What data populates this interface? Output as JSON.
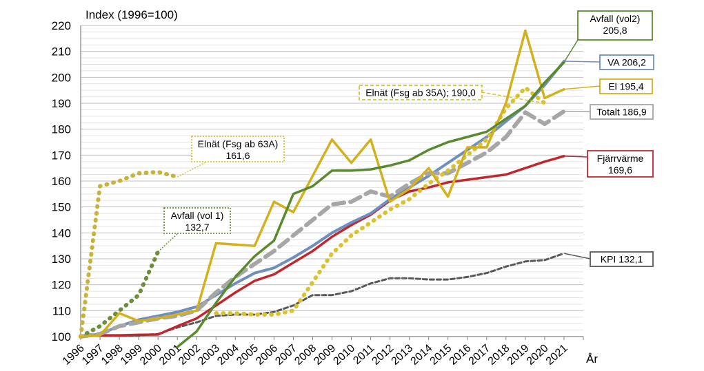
{
  "chart_data": {
    "type": "line",
    "title": "Index (1996=100)",
    "xlabel": "År",
    "ylabel": "",
    "ylim": [
      100,
      220
    ],
    "grid": true,
    "x": [
      "1996",
      "1997",
      "1998",
      "1999",
      "2000",
      "2001",
      "2002",
      "2003",
      "2004",
      "2005",
      "2006",
      "2007",
      "2008",
      "2009",
      "2010",
      "2011",
      "2012",
      "2013",
      "2014",
      "2015",
      "2016",
      "2017",
      "2018",
      "2019",
      "2020",
      "2021"
    ],
    "yticks": [
      "100",
      "110",
      "120",
      "130",
      "140",
      "150",
      "160",
      "170",
      "180",
      "190",
      "200",
      "210",
      "220"
    ],
    "series": [
      {
        "key": "kpi",
        "color": "#595959",
        "dash": "6,4",
        "width": 3,
        "x": [
          1996,
          1997,
          1998,
          1999,
          2000,
          2001,
          2002,
          2003,
          2004,
          2005,
          2006,
          2007,
          2008,
          2009,
          2010,
          2011,
          2012,
          2013,
          2014,
          2015,
          2016,
          2017,
          2018,
          2019,
          2020,
          2021
        ],
        "values": [
          100,
          100.5,
          100.3,
          100.5,
          101,
          103.5,
          105.5,
          108,
          108.5,
          108.5,
          109.5,
          112,
          116,
          116,
          117.5,
          120.5,
          122.5,
          122.5,
          122,
          122,
          123,
          124.5,
          127,
          129,
          129.5,
          132.1
        ]
      },
      {
        "key": "fjarr",
        "color": "#c0272d",
        "dash": "",
        "width": 3.5,
        "x": [
          1996,
          1997,
          1998,
          1999,
          2000,
          2001,
          2002,
          2003,
          2004,
          2005,
          2006,
          2007,
          2008,
          2009,
          2010,
          2011,
          2012,
          2013,
          2014,
          2015,
          2016,
          2017,
          2018,
          2019,
          2020,
          2021
        ],
        "values": [
          100,
          100.5,
          100.5,
          100.7,
          100.8,
          104,
          107,
          112,
          117,
          121.5,
          124,
          128.5,
          133,
          138.5,
          143,
          147,
          152.5,
          156,
          157.5,
          159.5,
          160.5,
          161.5,
          162.5,
          165,
          167.5,
          169.6
        ]
      },
      {
        "key": "va",
        "color": "#6e8fbd",
        "dash": "",
        "width": 4,
        "x": [
          1996,
          1997,
          1998,
          1999,
          2000,
          2001,
          2002,
          2003,
          2004,
          2005,
          2006,
          2007,
          2008,
          2009,
          2010,
          2011,
          2012,
          2013,
          2014,
          2015,
          2016,
          2017,
          2018,
          2019,
          2020,
          2021
        ],
        "values": [
          100,
          101,
          104,
          106.5,
          108,
          109.5,
          111.5,
          116,
          120.5,
          124.5,
          126.5,
          130.5,
          135,
          140,
          144,
          147.5,
          153,
          157.5,
          162,
          167,
          172,
          177,
          183,
          189,
          197,
          206.2
        ]
      },
      {
        "key": "totalt",
        "color": "#a6a6a6",
        "dash": "16,9",
        "width": 6,
        "x": [
          1996,
          1997,
          1998,
          1999,
          2000,
          2001,
          2002,
          2003,
          2004,
          2005,
          2006,
          2007,
          2008,
          2009,
          2010,
          2011,
          2012,
          2013,
          2014,
          2015,
          2016,
          2017,
          2018,
          2019,
          2020,
          2021
        ],
        "values": [
          100,
          101,
          104,
          105.5,
          107,
          108,
          110,
          117,
          123,
          128,
          133,
          139,
          145,
          151,
          152,
          156,
          154,
          159,
          163,
          163,
          167,
          171,
          177,
          186.5,
          182,
          186.9
        ]
      },
      {
        "key": "avfall1",
        "color": "#6b8e3b",
        "dash": "1,9",
        "width": 6,
        "x": [
          1996,
          1997,
          1998,
          1999,
          2000
        ],
        "values": [
          100,
          104,
          110,
          116,
          132.7
        ]
      },
      {
        "key": "elnat63",
        "color": "#c8b23a",
        "dash": "1,9",
        "width": 6,
        "x": [
          1996,
          1997,
          1998,
          1999,
          2000,
          2001
        ],
        "values": [
          100,
          158,
          160,
          163,
          163.5,
          161.6
        ]
      },
      {
        "key": "elnat35",
        "color": "#d9c22e",
        "dash": "1,9",
        "width": 6,
        "x": [
          2003,
          2004,
          2005,
          2006,
          2007,
          2008,
          2009,
          2010,
          2011,
          2012,
          2013,
          2014,
          2015,
          2016,
          2017,
          2018,
          2019,
          2020
        ],
        "values": [
          109,
          109,
          108.5,
          108.5,
          110,
          121,
          132,
          139,
          144,
          149,
          153,
          159,
          164,
          170,
          176,
          188,
          196,
          190.0
        ]
      },
      {
        "key": "el",
        "color": "#d4b01c",
        "dash": "",
        "width": 3.5,
        "x": [
          1996,
          1997,
          1998,
          1999,
          2000,
          2001,
          2002,
          2003,
          2004,
          2005,
          2006,
          2007,
          2008,
          2009,
          2010,
          2011,
          2012,
          2013,
          2014,
          2015,
          2016,
          2017,
          2018,
          2019,
          2020,
          2021
        ],
        "values": [
          100,
          100.5,
          109,
          106,
          107,
          108.5,
          110,
          136,
          135.5,
          135,
          152,
          148,
          162,
          176,
          167,
          176,
          152,
          157,
          165,
          154,
          173,
          173,
          190,
          218,
          192,
          195.4
        ]
      },
      {
        "key": "avfall2",
        "color": "#5a8a2e",
        "dash": "",
        "width": 3.5,
        "x": [
          2001,
          2002,
          2003,
          2004,
          2005,
          2006,
          2007,
          2008,
          2009,
          2010,
          2011,
          2012,
          2013,
          2014,
          2015,
          2016,
          2017,
          2018,
          2019,
          2020,
          2021
        ],
        "values": [
          96,
          102,
          113,
          123,
          131,
          137,
          155,
          158,
          164,
          164,
          164.5,
          166,
          168,
          172,
          175,
          177,
          179,
          184,
          189,
          198,
          205.8
        ]
      }
    ],
    "annotations": [
      {
        "key": "avfall2",
        "line1": "Avfall (vol2)",
        "line2": "205,8",
        "color": "#5a8a2e",
        "style": "solid"
      },
      {
        "key": "va",
        "line1": "VA 206,2",
        "line2": "",
        "color": "#6e8fbd",
        "style": "solid"
      },
      {
        "key": "el",
        "line1": "El 195,4",
        "line2": "",
        "color": "#d4b01c",
        "style": "solid"
      },
      {
        "key": "totalt",
        "line1": "Totalt 186,9",
        "line2": "",
        "color": "#a6a6a6",
        "style": "solid"
      },
      {
        "key": "fjarr",
        "line1": "Fjärrvärme",
        "line2": "169,6",
        "color": "#c0272d",
        "style": "solid"
      },
      {
        "key": "kpi",
        "line1": "KPI 132,1",
        "line2": "",
        "color": "#595959",
        "style": "solid"
      },
      {
        "key": "elnat35",
        "line1": "Elnät (Fsg ab 35A); 190,0",
        "line2": "",
        "color": "#d9c22e",
        "style": "dashed"
      },
      {
        "key": "elnat63",
        "line1": "Elnät (Fsg ab 63A)",
        "line2": "161,6",
        "color": "#d9c22e",
        "style": "dotted"
      },
      {
        "key": "avfall1",
        "line1": "Avfall (vol 1)",
        "line2": "132,7",
        "color": "#6b8e3b",
        "style": "dotted"
      }
    ]
  }
}
